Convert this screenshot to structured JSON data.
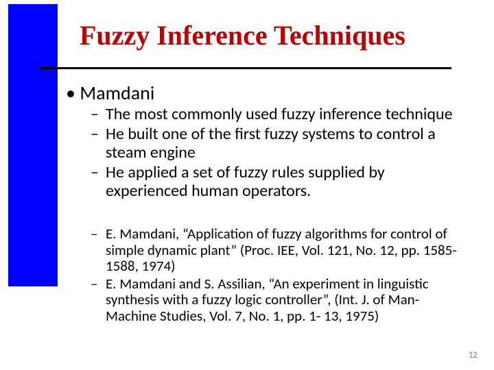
{
  "layout": {
    "blue_bar_style": "left:12px; top:6px; width:72px; height:412px;",
    "rule_style": "left:58px; top:98px; width:600px;"
  },
  "title": {
    "text": "Fuzzy Inference Techniques",
    "style": "left:116px; top:28px; font-size:40px; color:#c00000; letter-spacing:0px;"
  },
  "bullets": {
    "l1_marker": "•",
    "l1_text": "Mamdani",
    "l1_style": "left:96px; top:118px; font-size:28px; color:#000000;",
    "dash": "–",
    "group_a_style": "left:132px; top:154px; width:538px; font-size:24px; color:#000000; line-height:1.12;",
    "group_a": [
      "The most commonly used fuzzy inference technique",
      "He built one of the first fuzzy systems to control a steam engine",
      "He applied a set of fuzzy rules supplied by experienced human operators."
    ],
    "group_b_style": "left:132px; top:330px; width:538px; font-size:21px; color:#000000; line-height:1.12;",
    "group_b": [
      "E. Mamdani, “Application of fuzzy algorithms for control of simple dynamic plant” (Proc. IEE, Vol. 121, No. 12, pp. 1585-1588, 1974)",
      "E. Mamdani and S. Assilian, “An experiment in linguistic synthesis with a fuzzy logic controller”, (Int. J. of Man-Machine Studies, Vol. 7, No. 1, pp. 1- 13, 1975)"
    ]
  },
  "page": {
    "number": "12",
    "style": "right:24px; bottom:14px; font-size:13px;"
  }
}
